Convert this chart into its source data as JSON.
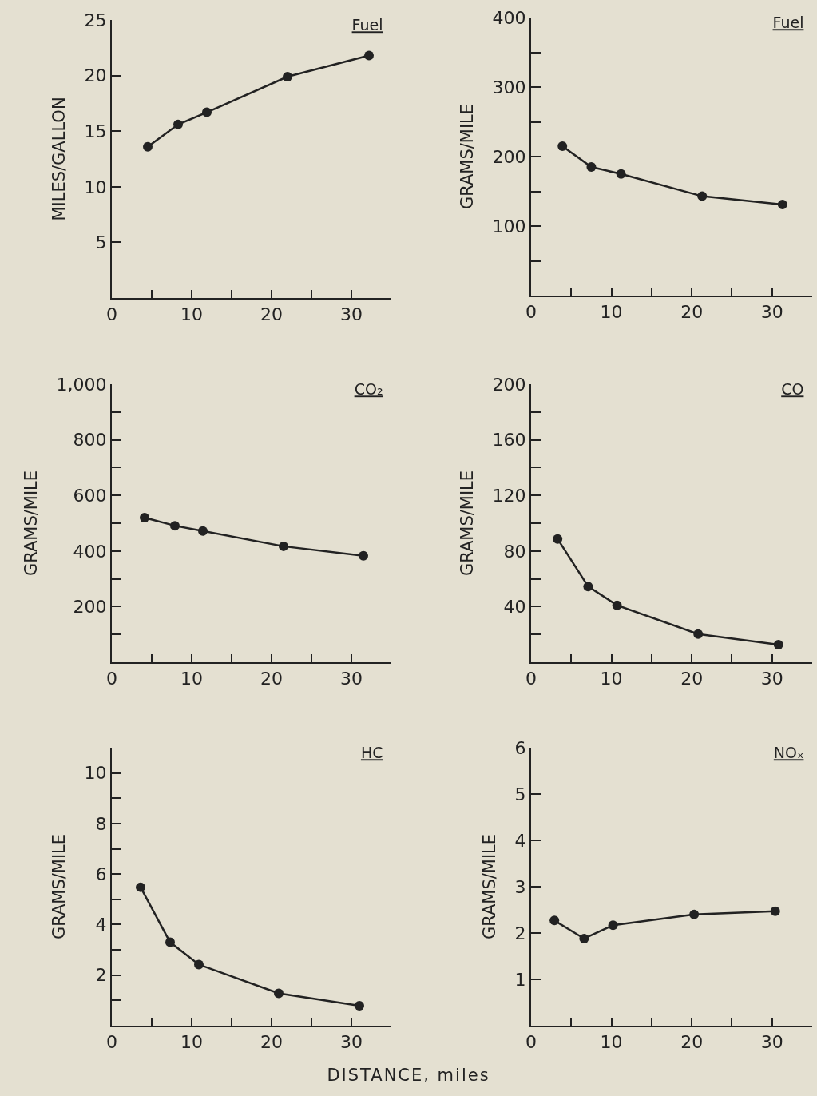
{
  "chart_data": [
    {
      "type": "line",
      "title": "Fuel",
      "ylabel": "MILES/GALLON",
      "x": [
        4.5,
        8.3,
        11.9,
        22.0,
        32.2
      ],
      "values": [
        13.6,
        15.6,
        16.7,
        19.9,
        21.8
      ],
      "color": "#222222",
      "marker": "circle",
      "line_style": "solid",
      "xlim": [
        0,
        35
      ],
      "xticks": [
        0,
        {
          "value": 5,
          "label": null
        },
        10,
        {
          "value": 15,
          "label": null
        },
        20,
        {
          "value": 25,
          "label": null
        },
        30
      ],
      "ylim": [
        0,
        25
      ],
      "yticks": [
        5,
        10,
        15,
        20,
        25
      ]
    },
    {
      "type": "line",
      "title": "Fuel",
      "ylabel": "GRAMS/MILE",
      "x": [
        3.9,
        7.5,
        11.2,
        21.3,
        31.3
      ],
      "values": [
        215,
        185,
        175,
        143,
        131
      ],
      "color": "#222222",
      "marker": "circle",
      "line_style": "solid",
      "xlim": [
        0,
        35
      ],
      "xticks": [
        0,
        {
          "value": 5,
          "label": null
        },
        10,
        {
          "value": 15,
          "label": null
        },
        20,
        {
          "value": 25,
          "label": null
        },
        30
      ],
      "ylim": [
        0,
        400
      ],
      "yticks": [
        {
          "value": 50,
          "label": null
        },
        100,
        {
          "value": 150,
          "label": null
        },
        200,
        {
          "value": 250,
          "label": null
        },
        300,
        {
          "value": 350,
          "label": null
        },
        400
      ]
    },
    {
      "type": "line",
      "title": "CO₂",
      "ylabel": "GRAMS/MILE",
      "x": [
        4.1,
        7.9,
        11.4,
        21.5,
        31.5
      ],
      "values": [
        520,
        491,
        472,
        417,
        383
      ],
      "color": "#222222",
      "marker": "circle",
      "line_style": "solid",
      "xlim": [
        0,
        35
      ],
      "xticks": [
        0,
        {
          "value": 5,
          "label": null
        },
        10,
        {
          "value": 15,
          "label": null
        },
        20,
        {
          "value": 25,
          "label": null
        },
        30
      ],
      "ylim": [
        0,
        1000
      ],
      "yticks": [
        {
          "value": 100,
          "label": null
        },
        200,
        {
          "value": 300,
          "label": null
        },
        400,
        {
          "value": 500,
          "label": null
        },
        600,
        {
          "value": 700,
          "label": null
        },
        800,
        {
          "value": 900,
          "label": null
        },
        {
          "value": 1000,
          "label": "1,000"
        }
      ]
    },
    {
      "type": "line",
      "title": "CO",
      "ylabel": "GRAMS/MILE",
      "x": [
        3.3,
        7.1,
        10.7,
        20.8,
        30.8
      ],
      "values": [
        88.7,
        54.5,
        41,
        20.3,
        12.7
      ],
      "color": "#222222",
      "marker": "circle",
      "line_style": "solid",
      "xlim": [
        0,
        35
      ],
      "xticks": [
        0,
        {
          "value": 5,
          "label": null
        },
        10,
        {
          "value": 15,
          "label": null
        },
        20,
        {
          "value": 25,
          "label": null
        },
        30
      ],
      "ylim": [
        0,
        200
      ],
      "yticks": [
        {
          "value": 20,
          "label": null
        },
        40,
        {
          "value": 60,
          "label": null
        },
        80,
        {
          "value": 100,
          "label": null
        },
        120,
        {
          "value": 140,
          "label": null
        },
        160,
        {
          "value": 180,
          "label": null
        },
        200
      ]
    },
    {
      "type": "line",
      "title": "HC",
      "xlabel": "DISTANCE, miles",
      "ylabel": "GRAMS/MILE",
      "x": [
        3.6,
        7.3,
        10.9,
        20.9,
        31.0
      ],
      "values": [
        5.48,
        3.3,
        2.42,
        1.28,
        0.79
      ],
      "color": "#222222",
      "marker": "circle",
      "line_style": "solid",
      "xlim": [
        0,
        35
      ],
      "xticks": [
        0,
        {
          "value": 5,
          "label": null
        },
        10,
        {
          "value": 15,
          "label": null
        },
        20,
        {
          "value": 25,
          "label": null
        },
        30
      ],
      "ylim": [
        0,
        11
      ],
      "yticks": [
        {
          "value": 1,
          "label": null
        },
        2,
        {
          "value": 3,
          "label": null
        },
        4,
        {
          "value": 5,
          "label": null
        },
        6,
        {
          "value": 7,
          "label": null
        },
        8,
        {
          "value": 9,
          "label": null
        },
        10
      ]
    },
    {
      "type": "line",
      "title": "NOₓ",
      "ylabel": "GRAMS/MILE",
      "x": [
        2.9,
        6.6,
        10.2,
        20.3,
        30.4
      ],
      "values": [
        2.27,
        1.88,
        2.17,
        2.4,
        2.47
      ],
      "color": "#222222",
      "marker": "circle",
      "line_style": "solid",
      "xlim": [
        0,
        35
      ],
      "xticks": [
        0,
        {
          "value": 5,
          "label": null
        },
        10,
        {
          "value": 15,
          "label": null
        },
        20,
        {
          "value": 25,
          "label": null
        },
        30
      ],
      "ylim": [
        0,
        6
      ],
      "yticks": [
        1,
        2,
        3,
        4,
        5,
        6
      ]
    }
  ]
}
